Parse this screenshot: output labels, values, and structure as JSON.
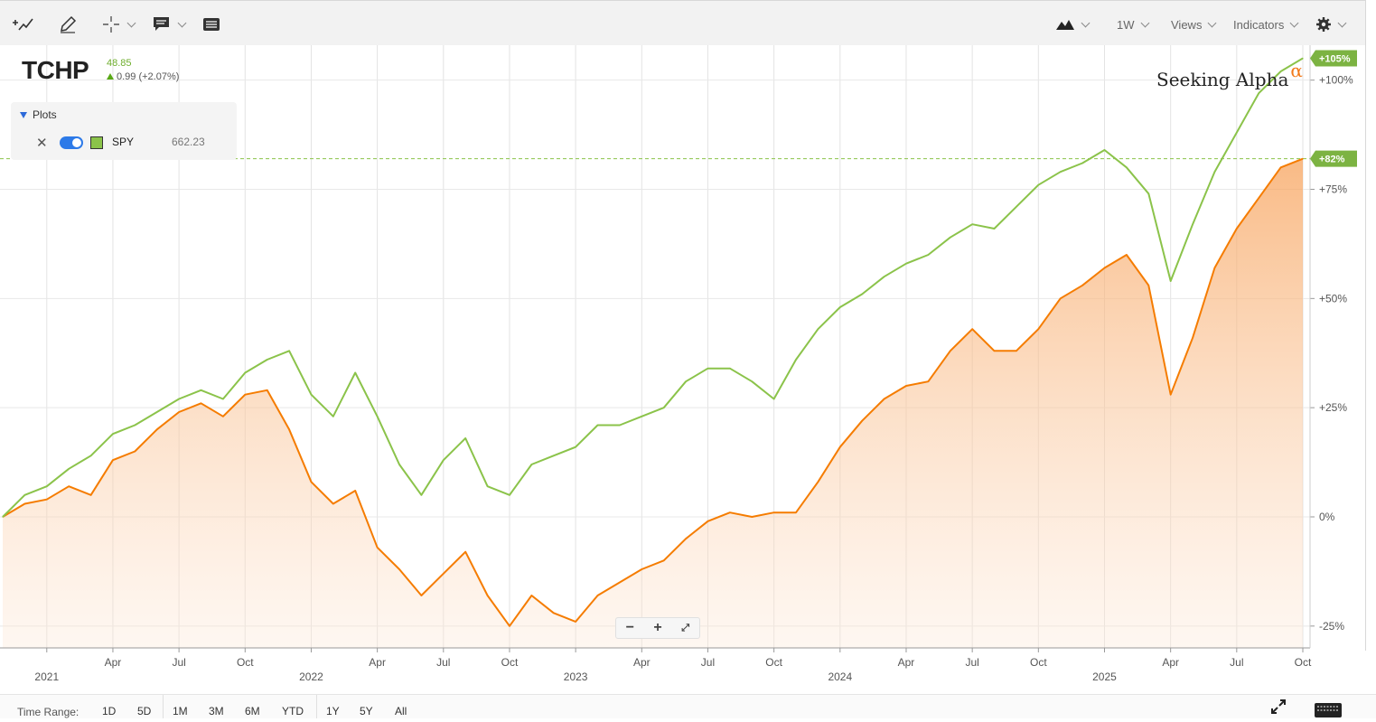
{
  "toolbar": {
    "views_label": "Views",
    "indicators_label": "Indicators",
    "interval_label": "1W"
  },
  "symbol": {
    "ticker": "TCHP",
    "price": "48.85",
    "change": "0.99 (+2.07%)",
    "up_color": "#58a815"
  },
  "plots": {
    "title": "Plots",
    "items": [
      {
        "name": "SPY",
        "value": "662.23",
        "color": "#8bc34a"
      }
    ]
  },
  "brand": {
    "text": "Seeking Alpha",
    "alpha": "α",
    "alpha_color": "#f27a1a"
  },
  "time_range": {
    "label": "Time Range:",
    "buttons": [
      "1D",
      "5D",
      "1M",
      "3M",
      "6M",
      "YTD",
      "1Y",
      "5Y",
      "All"
    ]
  },
  "chart_data": {
    "type": "line",
    "y_axis": "percent change",
    "ylim": [
      -30,
      108
    ],
    "yticks": [
      "+100%",
      "+75%",
      "+50%",
      "+25%",
      "0%",
      "-25%"
    ],
    "ytick_values": [
      100,
      75,
      50,
      25,
      0,
      -25
    ],
    "x_tick_labels": [
      "2021",
      "Apr",
      "Jul",
      "Oct",
      "2022",
      "Apr",
      "Jul",
      "Oct",
      "2023",
      "Apr",
      "Jul",
      "Oct",
      "2024",
      "Apr",
      "Jul",
      "Oct",
      "2025",
      "Apr",
      "Jul",
      "Oct"
    ],
    "x_tick_dates": [
      "2021-01",
      "2021-04",
      "2021-07",
      "2021-10",
      "2022-01",
      "2022-04",
      "2022-07",
      "2022-10",
      "2023-01",
      "2023-04",
      "2023-07",
      "2023-10",
      "2024-01",
      "2024-04",
      "2024-07",
      "2024-10",
      "2025-01",
      "2025-04",
      "2025-07",
      "2025-10"
    ],
    "last_value_labels": {
      "SPY": "+105%",
      "TCHP": "+82%"
    },
    "grid": true,
    "series": [
      {
        "name": "TCHP",
        "color": "#f57c00",
        "fill": true,
        "x": [
          "2020-11",
          "2020-12",
          "2021-01",
          "2021-02",
          "2021-03",
          "2021-04",
          "2021-05",
          "2021-06",
          "2021-07",
          "2021-08",
          "2021-09",
          "2021-10",
          "2021-11",
          "2021-12",
          "2022-01",
          "2022-02",
          "2022-03",
          "2022-04",
          "2022-05",
          "2022-06",
          "2022-07",
          "2022-08",
          "2022-09",
          "2022-10",
          "2022-11",
          "2022-12",
          "2023-01",
          "2023-02",
          "2023-03",
          "2023-04",
          "2023-05",
          "2023-06",
          "2023-07",
          "2023-08",
          "2023-09",
          "2023-10",
          "2023-11",
          "2023-12",
          "2024-01",
          "2024-02",
          "2024-03",
          "2024-04",
          "2024-05",
          "2024-06",
          "2024-07",
          "2024-08",
          "2024-09",
          "2024-10",
          "2024-11",
          "2024-12",
          "2025-01",
          "2025-02",
          "2025-03",
          "2025-04",
          "2025-05",
          "2025-06",
          "2025-07",
          "2025-08",
          "2025-09",
          "2025-10"
        ],
        "values": [
          0,
          3,
          4,
          7,
          5,
          13,
          15,
          20,
          24,
          26,
          23,
          28,
          29,
          20,
          8,
          3,
          6,
          -7,
          -12,
          -18,
          -13,
          -8,
          -18,
          -25,
          -18,
          -22,
          -24,
          -18,
          -15,
          -12,
          -10,
          -5,
          -1,
          1,
          0,
          1,
          1,
          8,
          16,
          22,
          27,
          30,
          31,
          38,
          43,
          38,
          38,
          43,
          50,
          53,
          57,
          60,
          53,
          28,
          41,
          57,
          66,
          73,
          80,
          82
        ]
      },
      {
        "name": "SPY",
        "color": "#8bc34a",
        "fill": false,
        "x": [
          "2020-11",
          "2020-12",
          "2021-01",
          "2021-02",
          "2021-03",
          "2021-04",
          "2021-05",
          "2021-06",
          "2021-07",
          "2021-08",
          "2021-09",
          "2021-10",
          "2021-11",
          "2021-12",
          "2022-01",
          "2022-02",
          "2022-03",
          "2022-04",
          "2022-05",
          "2022-06",
          "2022-07",
          "2022-08",
          "2022-09",
          "2022-10",
          "2022-11",
          "2022-12",
          "2023-01",
          "2023-02",
          "2023-03",
          "2023-04",
          "2023-05",
          "2023-06",
          "2023-07",
          "2023-08",
          "2023-09",
          "2023-10",
          "2023-11",
          "2023-12",
          "2024-01",
          "2024-02",
          "2024-03",
          "2024-04",
          "2024-05",
          "2024-06",
          "2024-07",
          "2024-08",
          "2024-09",
          "2024-10",
          "2024-11",
          "2024-12",
          "2025-01",
          "2025-02",
          "2025-03",
          "2025-04",
          "2025-05",
          "2025-06",
          "2025-07",
          "2025-08",
          "2025-09",
          "2025-10"
        ],
        "values": [
          0,
          5,
          7,
          11,
          14,
          19,
          21,
          24,
          27,
          29,
          27,
          33,
          36,
          38,
          28,
          23,
          33,
          23,
          12,
          5,
          13,
          18,
          7,
          5,
          12,
          14,
          16,
          21,
          21,
          23,
          25,
          31,
          34,
          34,
          31,
          27,
          36,
          43,
          48,
          51,
          55,
          58,
          60,
          64,
          67,
          66,
          71,
          76,
          79,
          81,
          84,
          80,
          74,
          54,
          67,
          79,
          88,
          97,
          102,
          105
        ]
      }
    ]
  }
}
